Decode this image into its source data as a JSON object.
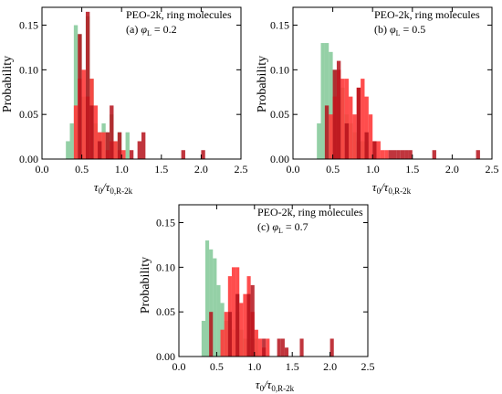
{
  "chart_data": [
    {
      "type": "bar",
      "panel_label": "(a)",
      "annotation_title": "PEO-2k, ring molecules",
      "phi_symbol": "φ",
      "phi_subscript": "L",
      "phi_value_text": " = 0.2",
      "xlabel_main": "τ",
      "xlabel_num_sub": "0",
      "xlabel_slash": "/τ",
      "xlabel_den_sub": "0,R-2k",
      "ylabel": "Probability",
      "xlim": [
        0,
        2.5
      ],
      "ylim": [
        0,
        0.17
      ],
      "x_ticks": [
        "0.0",
        "0.5",
        "1.0",
        "1.5",
        "2.0",
        "2.5"
      ],
      "y_ticks": [
        "0.00",
        "0.05",
        "0.10",
        "0.15"
      ],
      "bin_width": 0.05,
      "series": [
        {
          "color": "#5ab777",
          "opacity": 0.65,
          "bins": [
            [
              0.3,
              0.02
            ],
            [
              0.35,
              0.04
            ],
            [
              0.4,
              0.15
            ],
            [
              0.45,
              0.14
            ],
            [
              0.5,
              0.07
            ],
            [
              0.55,
              0.16
            ],
            [
              0.6,
              0.09
            ],
            [
              0.65,
              0.04
            ],
            [
              0.7,
              0.03
            ],
            [
              0.75,
              0.04
            ],
            [
              0.8,
              0.03
            ],
            [
              0.85,
              0.05
            ],
            [
              0.9,
              0.02
            ],
            [
              0.95,
              0.03
            ],
            [
              1.05,
              0.03
            ]
          ]
        },
        {
          "color": "#ff3a3a",
          "opacity": 0.9,
          "bins": [
            [
              0.4,
              0.06
            ],
            [
              0.45,
              0.09
            ],
            [
              0.5,
              0.1
            ],
            [
              0.55,
              0.07
            ],
            [
              0.6,
              0.09
            ],
            [
              0.65,
              0.06
            ],
            [
              0.7,
              0.03
            ],
            [
              0.75,
              0.03
            ],
            [
              0.8,
              0.01
            ],
            [
              0.85,
              0.02
            ],
            [
              0.9,
              0.02
            ],
            [
              0.95,
              0.01
            ],
            [
              1.0,
              0.01
            ]
          ]
        },
        {
          "color": "#b5121b",
          "opacity": 0.85,
          "bins": [
            [
              0.45,
              0.14
            ],
            [
              0.55,
              0.165
            ],
            [
              0.6,
              0.06
            ],
            [
              0.7,
              0.02
            ],
            [
              0.8,
              0.03
            ],
            [
              0.85,
              0.06
            ],
            [
              0.95,
              0.03
            ],
            [
              1.1,
              0.01
            ],
            [
              1.2,
              0.02
            ],
            [
              1.25,
              0.03
            ],
            [
              1.75,
              0.01
            ],
            [
              2.0,
              0.01
            ]
          ]
        }
      ]
    },
    {
      "type": "bar",
      "panel_label": "(b)",
      "annotation_title": "PEO-2k, ring molecules",
      "phi_symbol": "φ",
      "phi_subscript": "L",
      "phi_value_text": " = 0.5",
      "xlabel_main": "τ",
      "xlabel_num_sub": "0",
      "xlabel_slash": "/τ",
      "xlabel_den_sub": "0,R-2k",
      "ylabel": "Probability",
      "xlim": [
        0,
        2.5
      ],
      "ylim": [
        0,
        0.17
      ],
      "x_ticks": [
        "0.0",
        "0.5",
        "1.0",
        "1.5",
        "2.0",
        "2.5"
      ],
      "y_ticks": [
        "0.00",
        "0.05",
        "0.10",
        "0.15"
      ],
      "bin_width": 0.05,
      "series": [
        {
          "color": "#5ab777",
          "opacity": 0.65,
          "bins": [
            [
              0.3,
              0.04
            ],
            [
              0.35,
              0.13
            ],
            [
              0.4,
              0.13
            ],
            [
              0.45,
              0.12
            ],
            [
              0.5,
              0.1
            ],
            [
              0.55,
              0.07
            ],
            [
              0.6,
              0.08
            ],
            [
              0.65,
              0.05
            ],
            [
              0.7,
              0.04
            ],
            [
              0.75,
              0.03
            ],
            [
              0.8,
              0.02
            ],
            [
              0.85,
              0.02
            ],
            [
              0.9,
              0.02
            ]
          ]
        },
        {
          "color": "#ff3a3a",
          "opacity": 0.9,
          "bins": [
            [
              0.45,
              0.05
            ],
            [
              0.5,
              0.07
            ],
            [
              0.55,
              0.1
            ],
            [
              0.6,
              0.09
            ],
            [
              0.65,
              0.09
            ],
            [
              0.7,
              0.07
            ],
            [
              0.75,
              0.05
            ],
            [
              0.8,
              0.08
            ],
            [
              0.85,
              0.09
            ],
            [
              0.9,
              0.07
            ],
            [
              0.95,
              0.05
            ],
            [
              1.0,
              0.02
            ],
            [
              1.05,
              0.02
            ],
            [
              1.1,
              0.01
            ],
            [
              1.15,
              0.01
            ]
          ]
        },
        {
          "color": "#b5121b",
          "opacity": 0.85,
          "bins": [
            [
              0.4,
              0.06
            ],
            [
              0.5,
              0.1
            ],
            [
              0.55,
              0.11
            ],
            [
              0.65,
              0.04
            ],
            [
              0.8,
              0.08
            ],
            [
              0.9,
              0.03
            ],
            [
              1.0,
              0.02
            ],
            [
              1.2,
              0.01
            ],
            [
              1.25,
              0.01
            ],
            [
              1.3,
              0.01
            ],
            [
              1.35,
              0.01
            ],
            [
              1.4,
              0.01
            ],
            [
              1.45,
              0.01
            ],
            [
              1.75,
              0.01
            ],
            [
              2.3,
              0.01
            ]
          ]
        }
      ]
    },
    {
      "type": "bar",
      "panel_label": "(c)",
      "annotation_title": "PEO-2k, ring molecules",
      "phi_symbol": "φ",
      "phi_subscript": "L",
      "phi_value_text": " = 0.7",
      "xlabel_main": "τ",
      "xlabel_num_sub": "0",
      "xlabel_slash": "/τ",
      "xlabel_den_sub": "0,R-2k",
      "ylabel": "Probability",
      "xlim": [
        0,
        2.5
      ],
      "ylim": [
        0,
        0.17
      ],
      "x_ticks": [
        "0.0",
        "0.5",
        "1.0",
        "1.5",
        "2.0",
        "2.5"
      ],
      "y_ticks": [
        "0.00",
        "0.05",
        "0.10",
        "0.15"
      ],
      "bin_width": 0.05,
      "series": [
        {
          "color": "#5ab777",
          "opacity": 0.65,
          "bins": [
            [
              0.3,
              0.04
            ],
            [
              0.35,
              0.13
            ],
            [
              0.4,
              0.12
            ],
            [
              0.45,
              0.11
            ],
            [
              0.5,
              0.08
            ],
            [
              0.55,
              0.06
            ],
            [
              0.6,
              0.04
            ],
            [
              0.65,
              0.04
            ],
            [
              0.7,
              0.03
            ],
            [
              0.75,
              0.05
            ],
            [
              0.8,
              0.03
            ],
            [
              0.85,
              0.02
            ],
            [
              0.9,
              0.02
            ],
            [
              0.95,
              0.02
            ],
            [
              1.0,
              0.02
            ]
          ]
        },
        {
          "color": "#ff3a3a",
          "opacity": 0.9,
          "bins": [
            [
              0.55,
              0.03
            ],
            [
              0.6,
              0.05
            ],
            [
              0.65,
              0.09
            ],
            [
              0.7,
              0.1
            ],
            [
              0.75,
              0.1
            ],
            [
              0.8,
              0.06
            ],
            [
              0.85,
              0.07
            ],
            [
              0.9,
              0.09
            ],
            [
              0.95,
              0.05
            ],
            [
              1.0,
              0.03
            ],
            [
              1.05,
              0.02
            ],
            [
              1.1,
              0.01
            ],
            [
              1.15,
              0.02
            ]
          ]
        },
        {
          "color": "#b5121b",
          "opacity": 0.85,
          "bins": [
            [
              0.4,
              0.05
            ],
            [
              0.65,
              0.05
            ],
            [
              0.75,
              0.07
            ],
            [
              0.9,
              0.07
            ],
            [
              0.95,
              0.08
            ],
            [
              1.1,
              0.02
            ],
            [
              1.3,
              0.02
            ],
            [
              1.35,
              0.02
            ],
            [
              1.4,
              0.01
            ],
            [
              1.6,
              0.02
            ],
            [
              2.0,
              0.02
            ]
          ]
        }
      ]
    }
  ]
}
